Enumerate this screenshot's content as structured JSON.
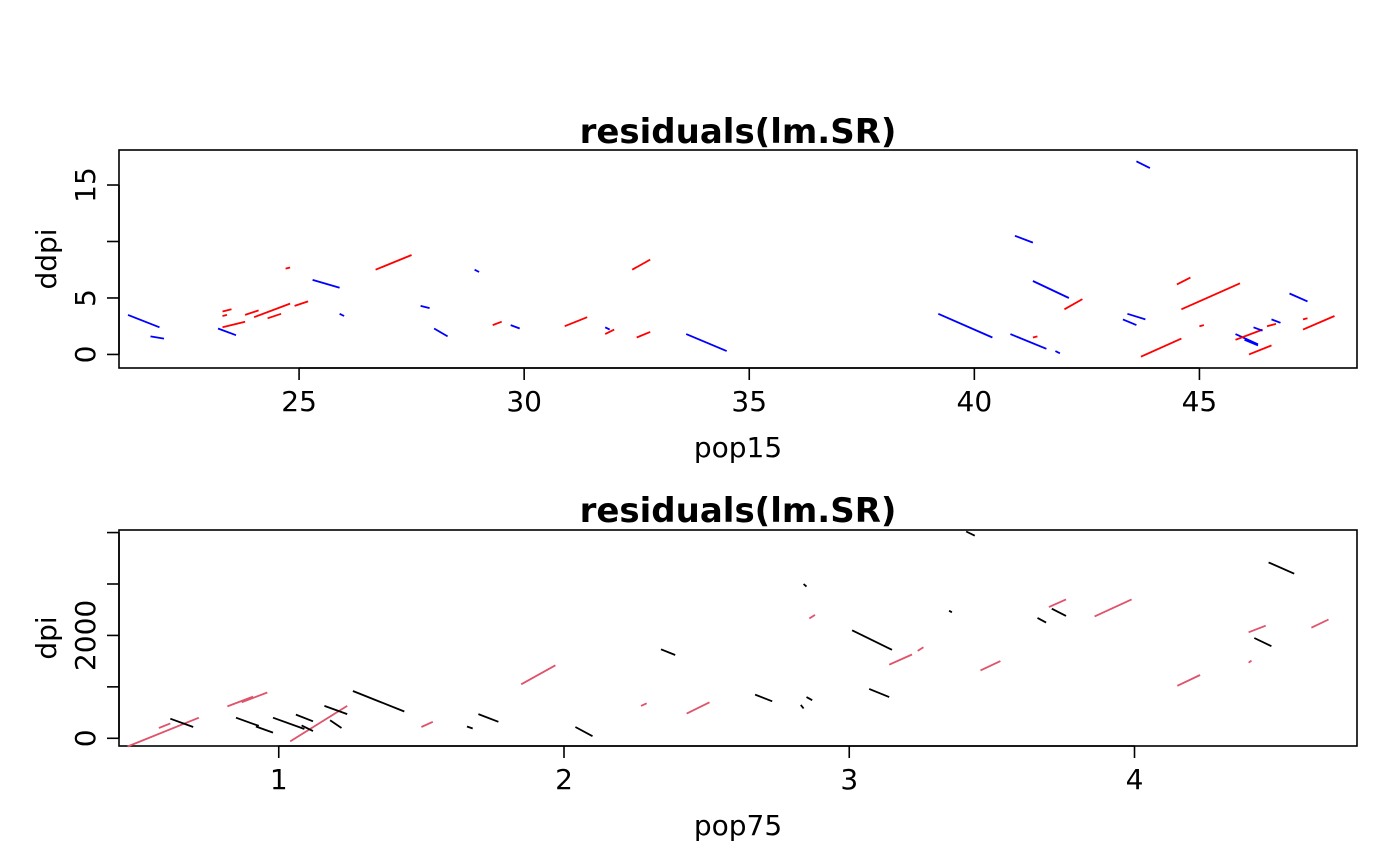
{
  "chart_data": [
    {
      "type": "line",
      "title": "residuals(lm.SR)",
      "xlabel": "pop15",
      "ylabel": "ddpi",
      "xlim": [
        21,
        48.5
      ],
      "ylim": [
        -1.2,
        18.1
      ],
      "x_ticks": [
        25,
        30,
        35,
        40,
        45
      ],
      "y_ticks": [
        0,
        5,
        10,
        15
      ],
      "y_tick_labels": [
        "0",
        "5",
        "",
        "15"
      ],
      "colors": {
        "positive": "#ff0000",
        "negative": "#0000ff"
      },
      "segments": [
        {
          "x1": 21.2,
          "y1": 3.5,
          "x2": 21.9,
          "y2": 2.4,
          "sign": "negative"
        },
        {
          "x1": 21.7,
          "y1": 1.6,
          "x2": 22.0,
          "y2": 1.4,
          "sign": "negative"
        },
        {
          "x1": 23.2,
          "y1": 2.3,
          "x2": 23.6,
          "y2": 1.7,
          "sign": "negative"
        },
        {
          "x1": 23.3,
          "y1": 3.4,
          "x2": 23.4,
          "y2": 3.5,
          "sign": "positive"
        },
        {
          "x1": 23.3,
          "y1": 2.4,
          "x2": 23.8,
          "y2": 2.9,
          "sign": "positive"
        },
        {
          "x1": 23.3,
          "y1": 3.8,
          "x2": 23.5,
          "y2": 4.0,
          "sign": "positive"
        },
        {
          "x1": 23.8,
          "y1": 3.5,
          "x2": 24.1,
          "y2": 3.9,
          "sign": "positive"
        },
        {
          "x1": 24.0,
          "y1": 3.3,
          "x2": 24.8,
          "y2": 4.5,
          "sign": "positive"
        },
        {
          "x1": 24.3,
          "y1": 3.2,
          "x2": 24.6,
          "y2": 3.6,
          "sign": "positive"
        },
        {
          "x1": 24.7,
          "y1": 7.6,
          "x2": 24.8,
          "y2": 7.7,
          "sign": "positive"
        },
        {
          "x1": 24.9,
          "y1": 4.3,
          "x2": 25.2,
          "y2": 4.7,
          "sign": "positive"
        },
        {
          "x1": 25.3,
          "y1": 6.6,
          "x2": 25.9,
          "y2": 5.9,
          "sign": "negative"
        },
        {
          "x1": 25.9,
          "y1": 3.6,
          "x2": 26.0,
          "y2": 3.4,
          "sign": "negative"
        },
        {
          "x1": 26.7,
          "y1": 7.5,
          "x2": 27.5,
          "y2": 8.8,
          "sign": "positive"
        },
        {
          "x1": 27.7,
          "y1": 4.3,
          "x2": 27.9,
          "y2": 4.1,
          "sign": "negative"
        },
        {
          "x1": 28.0,
          "y1": 2.3,
          "x2": 28.3,
          "y2": 1.6,
          "sign": "negative"
        },
        {
          "x1": 28.9,
          "y1": 7.5,
          "x2": 29.0,
          "y2": 7.3,
          "sign": "negative"
        },
        {
          "x1": 29.3,
          "y1": 2.6,
          "x2": 29.5,
          "y2": 2.9,
          "sign": "positive"
        },
        {
          "x1": 29.7,
          "y1": 2.6,
          "x2": 29.9,
          "y2": 2.3,
          "sign": "negative"
        },
        {
          "x1": 30.9,
          "y1": 2.5,
          "x2": 31.4,
          "y2": 3.3,
          "sign": "positive"
        },
        {
          "x1": 31.8,
          "y1": 2.4,
          "x2": 31.9,
          "y2": 2.2,
          "sign": "negative"
        },
        {
          "x1": 31.8,
          "y1": 1.8,
          "x2": 32.0,
          "y2": 2.2,
          "sign": "positive"
        },
        {
          "x1": 32.4,
          "y1": 7.5,
          "x2": 32.8,
          "y2": 8.4,
          "sign": "positive"
        },
        {
          "x1": 32.5,
          "y1": 1.5,
          "x2": 32.8,
          "y2": 2.0,
          "sign": "positive"
        },
        {
          "x1": 33.6,
          "y1": 1.8,
          "x2": 34.5,
          "y2": 0.3,
          "sign": "negative"
        },
        {
          "x1": 39.2,
          "y1": 3.6,
          "x2": 40.4,
          "y2": 1.5,
          "sign": "negative"
        },
        {
          "x1": 40.8,
          "y1": 1.8,
          "x2": 41.6,
          "y2": 0.5,
          "sign": "negative"
        },
        {
          "x1": 40.9,
          "y1": 10.5,
          "x2": 41.3,
          "y2": 9.9,
          "sign": "negative"
        },
        {
          "x1": 41.3,
          "y1": 6.5,
          "x2": 42.1,
          "y2": 5.0,
          "sign": "negative"
        },
        {
          "x1": 41.3,
          "y1": 1.5,
          "x2": 41.4,
          "y2": 1.6,
          "sign": "positive"
        },
        {
          "x1": 41.8,
          "y1": 0.3,
          "x2": 41.9,
          "y2": 0.1,
          "sign": "negative"
        },
        {
          "x1": 42.0,
          "y1": 4.0,
          "x2": 42.4,
          "y2": 4.9,
          "sign": "positive"
        },
        {
          "x1": 43.4,
          "y1": 3.6,
          "x2": 43.8,
          "y2": 3.1,
          "sign": "negative"
        },
        {
          "x1": 43.3,
          "y1": 3.1,
          "x2": 43.6,
          "y2": 2.6,
          "sign": "negative"
        },
        {
          "x1": 43.6,
          "y1": 17.1,
          "x2": 43.9,
          "y2": 16.5,
          "sign": "negative"
        },
        {
          "x1": 43.7,
          "y1": -0.2,
          "x2": 44.6,
          "y2": 1.4,
          "sign": "positive"
        },
        {
          "x1": 44.5,
          "y1": 6.2,
          "x2": 44.8,
          "y2": 6.8,
          "sign": "positive"
        },
        {
          "x1": 44.6,
          "y1": 4.0,
          "x2": 45.9,
          "y2": 6.3,
          "sign": "positive"
        },
        {
          "x1": 45.0,
          "y1": 2.5,
          "x2": 45.1,
          "y2": 2.6,
          "sign": "positive"
        },
        {
          "x1": 45.8,
          "y1": 1.8,
          "x2": 46.3,
          "y2": 0.9,
          "sign": "negative"
        },
        {
          "x1": 45.8,
          "y1": 1.3,
          "x2": 46.4,
          "y2": 2.2,
          "sign": "positive"
        },
        {
          "x1": 46.0,
          "y1": 1.3,
          "x2": 46.3,
          "y2": 0.8,
          "sign": "negative"
        },
        {
          "x1": 46.1,
          "y1": 0.0,
          "x2": 46.6,
          "y2": 0.8,
          "sign": "positive"
        },
        {
          "x1": 46.2,
          "y1": 2.4,
          "x2": 46.4,
          "y2": 2.1,
          "sign": "negative"
        },
        {
          "x1": 46.5,
          "y1": 2.5,
          "x2": 46.7,
          "y2": 2.7,
          "sign": "positive"
        },
        {
          "x1": 46.6,
          "y1": 3.1,
          "x2": 46.8,
          "y2": 2.8,
          "sign": "negative"
        },
        {
          "x1": 47.0,
          "y1": 5.4,
          "x2": 47.4,
          "y2": 4.7,
          "sign": "negative"
        },
        {
          "x1": 47.3,
          "y1": 2.2,
          "x2": 48.0,
          "y2": 3.4,
          "sign": "positive"
        },
        {
          "x1": 47.3,
          "y1": 3.1,
          "x2": 47.4,
          "y2": 3.2,
          "sign": "positive"
        }
      ]
    },
    {
      "type": "line",
      "title": "residuals(lm.SR)",
      "xlabel": "pop75",
      "ylabel": "dpi",
      "xlim": [
        0.44,
        4.78
      ],
      "ylim": [
        -150,
        4050
      ],
      "x_ticks": [
        1,
        2,
        3,
        4
      ],
      "y_ticks": [
        0,
        1000,
        2000,
        3000,
        4000
      ],
      "y_tick_labels": [
        "0",
        "",
        "2000",
        "",
        ""
      ],
      "colors": {
        "positive": "#df536b",
        "negative": "#000000"
      },
      "segments": [
        {
          "x1": 0.47,
          "y1": -160,
          "x2": 0.72,
          "y2": 400,
          "sign": "positive"
        },
        {
          "x1": 0.58,
          "y1": 200,
          "x2": 0.62,
          "y2": 290,
          "sign": "positive"
        },
        {
          "x1": 0.62,
          "y1": 380,
          "x2": 0.7,
          "y2": 220,
          "sign": "negative"
        },
        {
          "x1": 0.82,
          "y1": 620,
          "x2": 0.91,
          "y2": 810,
          "sign": "positive"
        },
        {
          "x1": 0.85,
          "y1": 400,
          "x2": 0.93,
          "y2": 240,
          "sign": "negative"
        },
        {
          "x1": 0.87,
          "y1": 700,
          "x2": 0.96,
          "y2": 890,
          "sign": "positive"
        },
        {
          "x1": 0.92,
          "y1": 230,
          "x2": 0.98,
          "y2": 110,
          "sign": "negative"
        },
        {
          "x1": 0.98,
          "y1": 400,
          "x2": 1.09,
          "y2": 180,
          "sign": "negative"
        },
        {
          "x1": 1.04,
          "y1": -60,
          "x2": 1.24,
          "y2": 630,
          "sign": "positive"
        },
        {
          "x1": 1.06,
          "y1": 460,
          "x2": 1.12,
          "y2": 330,
          "sign": "negative"
        },
        {
          "x1": 1.08,
          "y1": 250,
          "x2": 1.12,
          "y2": 140,
          "sign": "negative"
        },
        {
          "x1": 1.16,
          "y1": 630,
          "x2": 1.24,
          "y2": 470,
          "sign": "negative"
        },
        {
          "x1": 1.18,
          "y1": 350,
          "x2": 1.22,
          "y2": 200,
          "sign": "negative"
        },
        {
          "x1": 1.26,
          "y1": 920,
          "x2": 1.44,
          "y2": 520,
          "sign": "negative"
        },
        {
          "x1": 1.5,
          "y1": 220,
          "x2": 1.54,
          "y2": 320,
          "sign": "positive"
        },
        {
          "x1": 1.66,
          "y1": 230,
          "x2": 1.68,
          "y2": 190,
          "sign": "negative"
        },
        {
          "x1": 1.7,
          "y1": 470,
          "x2": 1.77,
          "y2": 320,
          "sign": "negative"
        },
        {
          "x1": 1.85,
          "y1": 1050,
          "x2": 1.97,
          "y2": 1420,
          "sign": "positive"
        },
        {
          "x1": 2.04,
          "y1": 220,
          "x2": 2.1,
          "y2": 40,
          "sign": "negative"
        },
        {
          "x1": 2.27,
          "y1": 630,
          "x2": 2.29,
          "y2": 680,
          "sign": "positive"
        },
        {
          "x1": 2.34,
          "y1": 1730,
          "x2": 2.39,
          "y2": 1620,
          "sign": "negative"
        },
        {
          "x1": 2.43,
          "y1": 480,
          "x2": 2.51,
          "y2": 700,
          "sign": "positive"
        },
        {
          "x1": 2.67,
          "y1": 850,
          "x2": 2.73,
          "y2": 720,
          "sign": "negative"
        },
        {
          "x1": 2.83,
          "y1": 650,
          "x2": 2.84,
          "y2": 580,
          "sign": "negative"
        },
        {
          "x1": 2.84,
          "y1": 3000,
          "x2": 2.85,
          "y2": 2950,
          "sign": "negative"
        },
        {
          "x1": 2.85,
          "y1": 800,
          "x2": 2.87,
          "y2": 740,
          "sign": "negative"
        },
        {
          "x1": 2.86,
          "y1": 2330,
          "x2": 2.88,
          "y2": 2400,
          "sign": "positive"
        },
        {
          "x1": 3.01,
          "y1": 2100,
          "x2": 3.15,
          "y2": 1720,
          "sign": "negative"
        },
        {
          "x1": 3.07,
          "y1": 960,
          "x2": 3.14,
          "y2": 800,
          "sign": "negative"
        },
        {
          "x1": 3.14,
          "y1": 1430,
          "x2": 3.22,
          "y2": 1630,
          "sign": "positive"
        },
        {
          "x1": 3.24,
          "y1": 1700,
          "x2": 3.26,
          "y2": 1770,
          "sign": "positive"
        },
        {
          "x1": 3.35,
          "y1": 2480,
          "x2": 3.36,
          "y2": 2450,
          "sign": "negative"
        },
        {
          "x1": 3.41,
          "y1": 4020,
          "x2": 3.44,
          "y2": 3940,
          "sign": "negative"
        },
        {
          "x1": 3.46,
          "y1": 1320,
          "x2": 3.53,
          "y2": 1500,
          "sign": "positive"
        },
        {
          "x1": 3.66,
          "y1": 2340,
          "x2": 3.69,
          "y2": 2250,
          "sign": "negative"
        },
        {
          "x1": 3.7,
          "y1": 2550,
          "x2": 3.76,
          "y2": 2700,
          "sign": "positive"
        },
        {
          "x1": 3.71,
          "y1": 2520,
          "x2": 3.76,
          "y2": 2380,
          "sign": "negative"
        },
        {
          "x1": 3.86,
          "y1": 2370,
          "x2": 3.99,
          "y2": 2700,
          "sign": "positive"
        },
        {
          "x1": 4.15,
          "y1": 1020,
          "x2": 4.23,
          "y2": 1230,
          "sign": "positive"
        },
        {
          "x1": 4.4,
          "y1": 1470,
          "x2": 4.41,
          "y2": 1510,
          "sign": "positive"
        },
        {
          "x1": 4.4,
          "y1": 2060,
          "x2": 4.46,
          "y2": 2190,
          "sign": "positive"
        },
        {
          "x1": 4.42,
          "y1": 1950,
          "x2": 4.48,
          "y2": 1790,
          "sign": "negative"
        },
        {
          "x1": 4.47,
          "y1": 3420,
          "x2": 4.56,
          "y2": 3200,
          "sign": "negative"
        },
        {
          "x1": 4.62,
          "y1": 2150,
          "x2": 4.68,
          "y2": 2310,
          "sign": "positive"
        }
      ]
    }
  ]
}
